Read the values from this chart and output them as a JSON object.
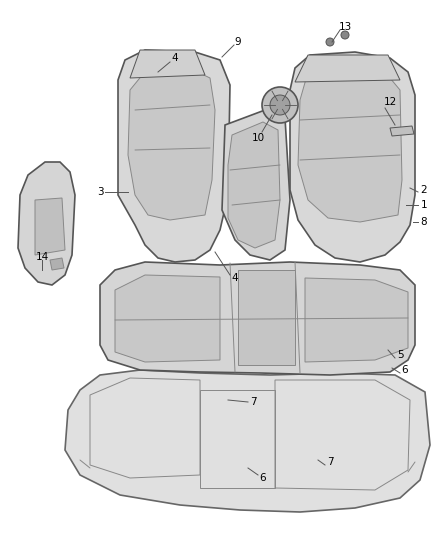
{
  "bg_color": "#ffffff",
  "line_color": "#555555",
  "fill_color": "#e8e8e8",
  "text_color": "#000000",
  "label_fs": 7.5,
  "lw_main": 1.2,
  "lw_thin": 0.7
}
